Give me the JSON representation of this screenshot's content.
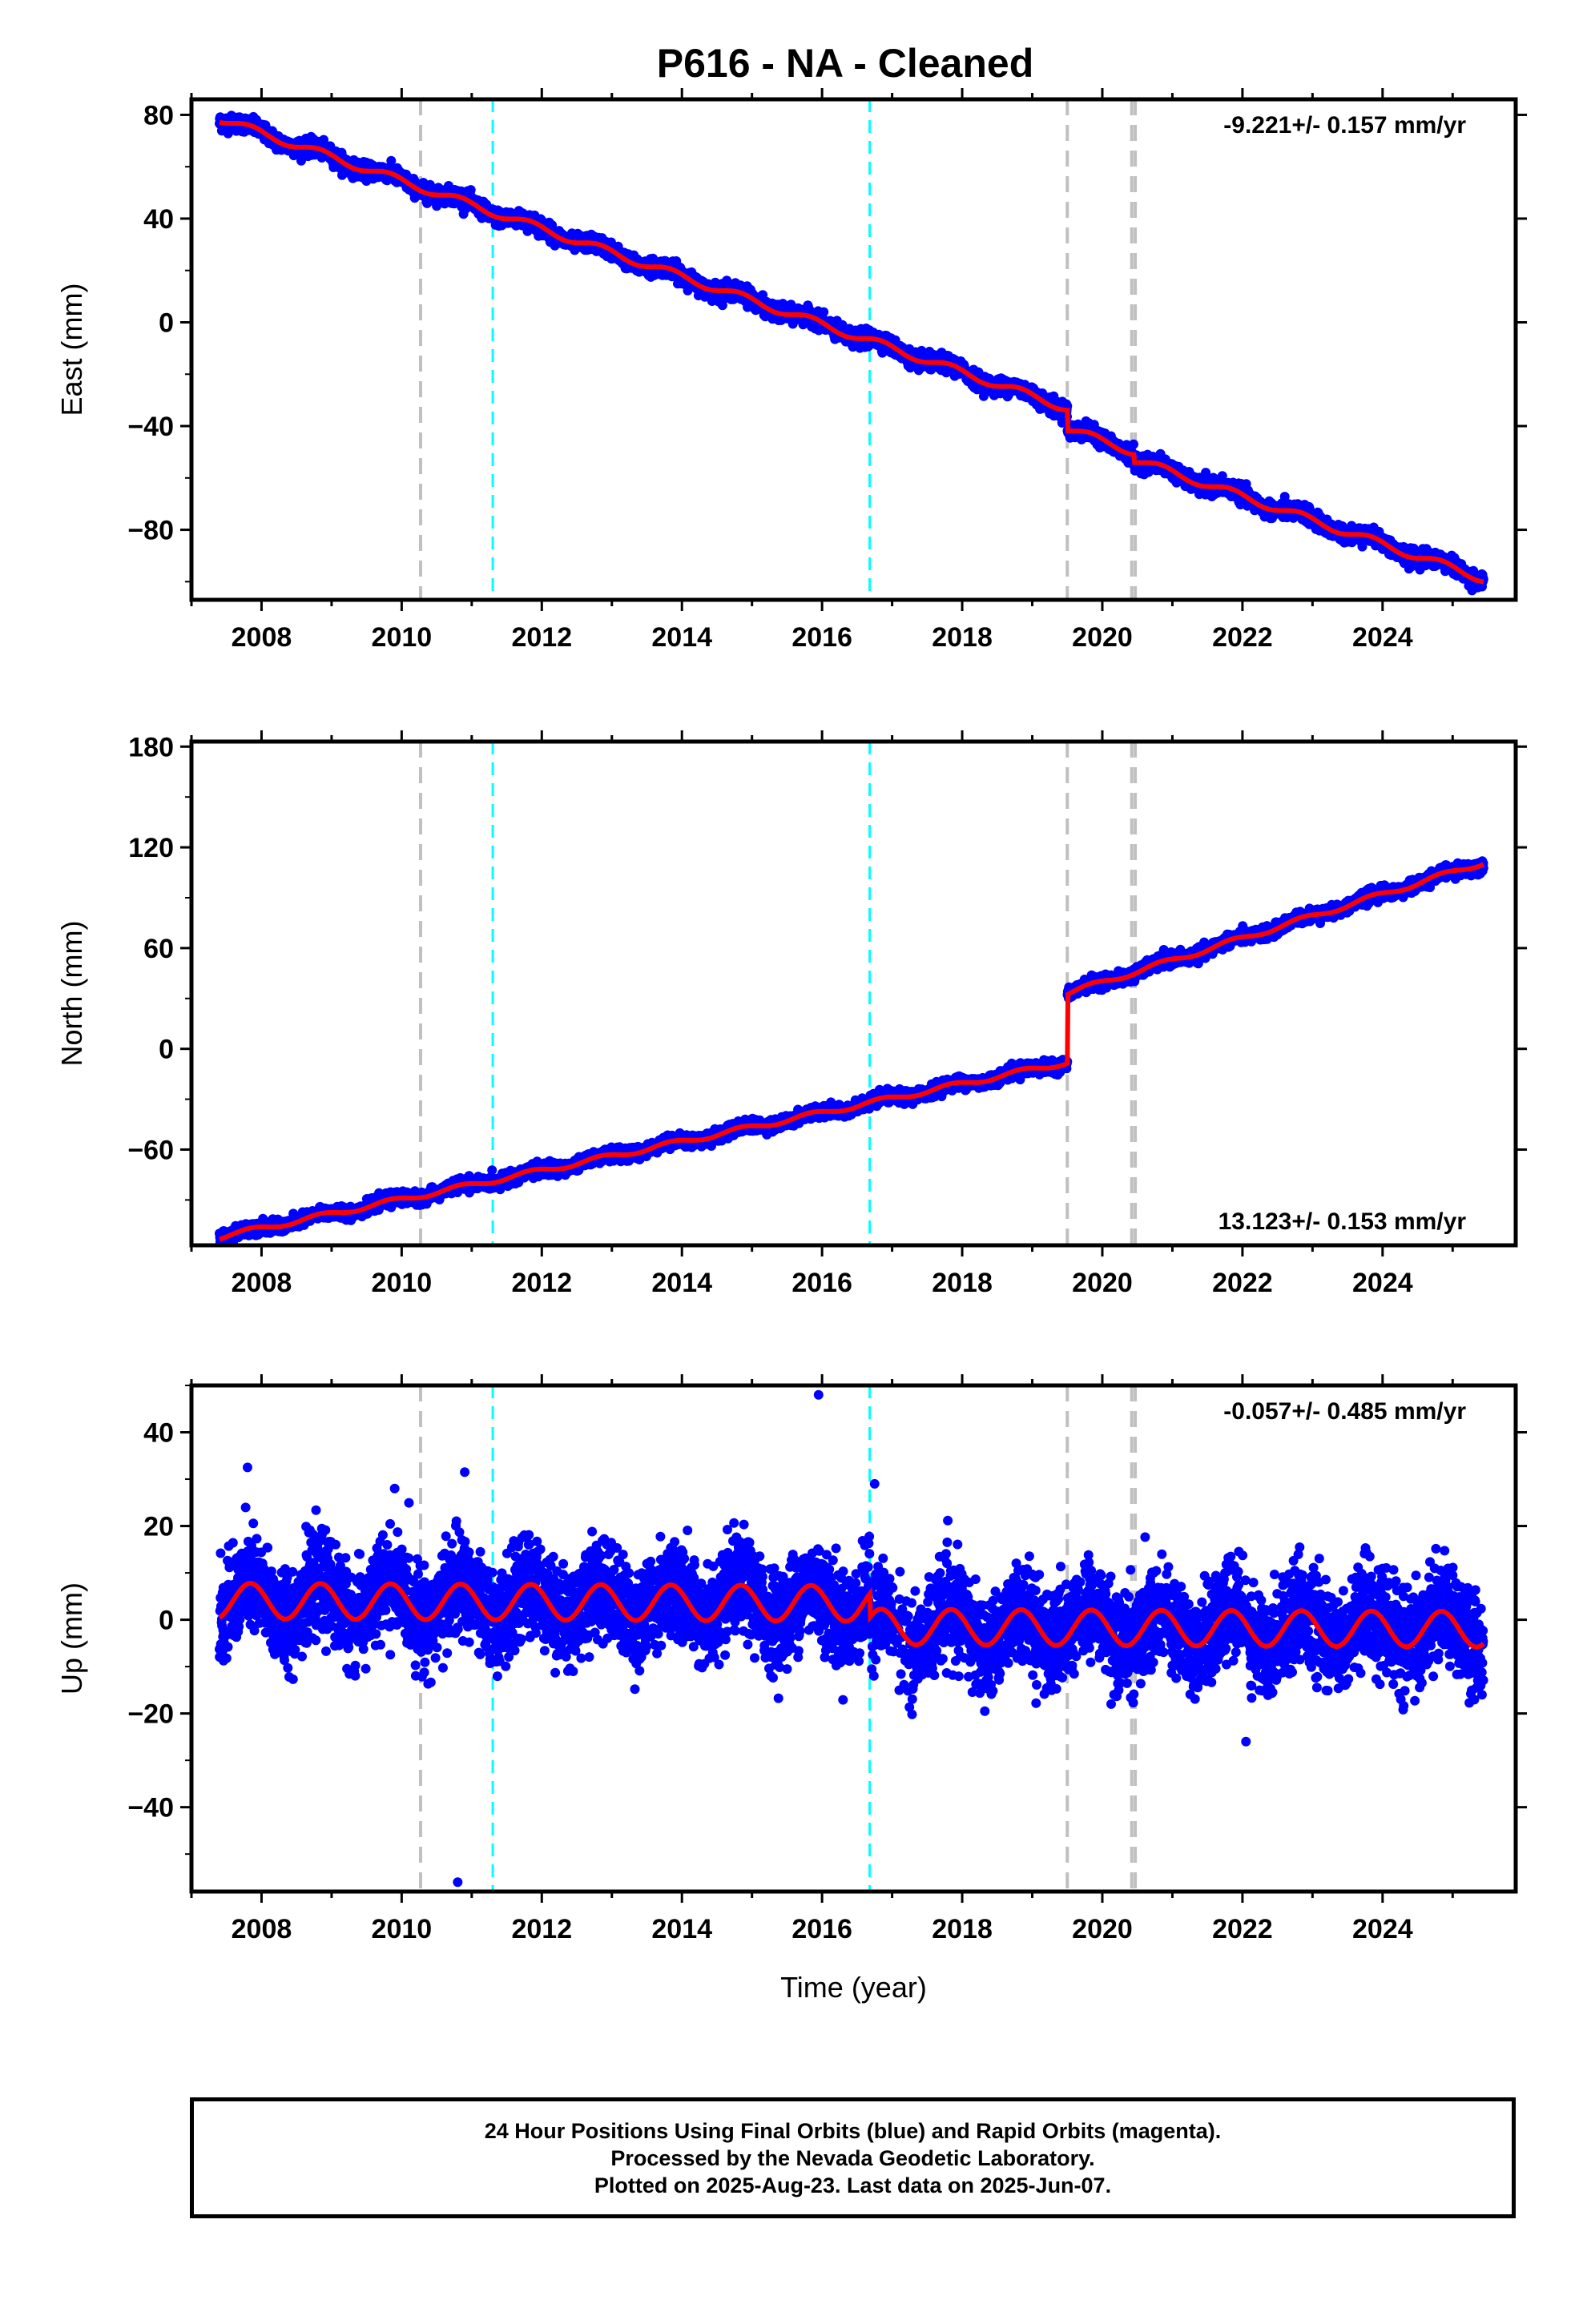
{
  "title": "P616  - NA - Cleaned",
  "colors": {
    "data_points": "#0000ff",
    "model_line": "#ff0000",
    "equipment_change_line": "#c0c0c0",
    "earthquake_line": "#00ffff"
  },
  "chart_data": [
    {
      "type": "scatter",
      "ylabel": "East (mm)",
      "xlabel": "",
      "xlim": [
        2007.0,
        2025.9
      ],
      "ylim": [
        -107,
        86
      ],
      "x_ticks": [
        2008,
        2010,
        2012,
        2014,
        2016,
        2018,
        2020,
        2022,
        2024
      ],
      "y_ticks": [
        80,
        40,
        0,
        -40,
        -80
      ],
      "rate_label": "-9.221+/- 0.157 mm/yr",
      "rate_position": "top-right",
      "series": [
        {
          "name": "",
          "kind": "data",
          "noise": 1.5,
          "model": {
            "start": 2007.4,
            "end": 2025.44,
            "t0": 2007.4,
            "y0": 78.5,
            "rate": -9.221,
            "annual": 1.5,
            "steps": [
              {
                "t": 2019.5,
                "dy": -8
              },
              {
                "t": 2020.45,
                "dy": -3
              }
            ]
          }
        },
        {
          "name": "",
          "kind": "model",
          "line": true
        }
      ],
      "vlines_gray": [
        2010.27,
        2019.5,
        2020.42,
        2020.47
      ],
      "vlines_cyan": [
        2011.3,
        2016.68
      ]
    },
    {
      "type": "scatter",
      "ylabel": "North (mm)",
      "xlabel": "",
      "xlim": [
        2007.0,
        2025.9
      ],
      "ylim": [
        -117,
        183
      ],
      "x_ticks": [
        2008,
        2010,
        2012,
        2014,
        2016,
        2018,
        2020,
        2022,
        2024
      ],
      "y_ticks": [
        180,
        120,
        60,
        0,
        -60
      ],
      "rate_label": "13.123+/- 0.153 mm/yr",
      "rate_position": "bottom-right",
      "series": [
        {
          "name": "",
          "kind": "data",
          "noise": 1.8,
          "model": {
            "start": 2007.4,
            "end": 2025.44,
            "t0": 2007.4,
            "y0": -112,
            "rate": 8.6,
            "annual": 1.5,
            "steps": [
              {
                "t": 2019.5,
                "dy": 41
              }
            ]
          },
          "post_rate": 13.123
        },
        {
          "name": "",
          "kind": "model",
          "line": true
        }
      ],
      "vlines_gray": [
        2010.27,
        2019.5,
        2020.42,
        2020.47
      ],
      "vlines_cyan": [
        2011.3,
        2016.68
      ]
    },
    {
      "type": "scatter",
      "ylabel": "Up (mm)",
      "xlabel": "Time (year)",
      "xlim": [
        2007.0,
        2025.9
      ],
      "ylim": [
        -58,
        50
      ],
      "x_ticks": [
        2008,
        2010,
        2012,
        2014,
        2016,
        2018,
        2020,
        2022,
        2024
      ],
      "y_ticks": [
        40,
        20,
        0,
        -20,
        -40
      ],
      "rate_label": "-0.057+/- 0.485 mm/yr",
      "rate_position": "top-right",
      "series": [
        {
          "name": "",
          "kind": "data",
          "noise": 5.0,
          "model": {
            "start": 2007.4,
            "end": 2025.44,
            "t0": 2007.4,
            "y0": 4.0,
            "rate": -0.057,
            "annual": 3.8,
            "steps": [
              {
                "t": 2016.68,
                "dy": -5
              }
            ]
          },
          "outliers": [
            [
              2015.95,
              48
            ],
            [
              2010.8,
              -56
            ],
            [
              2007.8,
              32.5
            ],
            [
              2010.9,
              31.5
            ],
            [
              2009.9,
              28
            ],
            [
              2022.05,
              -26
            ],
            [
              2016.75,
              29
            ]
          ]
        },
        {
          "name": "",
          "kind": "model",
          "line": true
        }
      ],
      "vlines_gray": [
        2010.27,
        2019.5,
        2020.42,
        2020.47
      ],
      "vlines_cyan": [
        2011.3,
        2016.68
      ]
    }
  ],
  "footer": {
    "line1": "24 Hour Positions Using Final Orbits (blue) and Rapid Orbits (magenta).",
    "line2": "Processed by the Nevada Geodetic Laboratory.",
    "line3": "Plotted on 2025-Aug-23. Last data on 2025-Jun-07."
  }
}
